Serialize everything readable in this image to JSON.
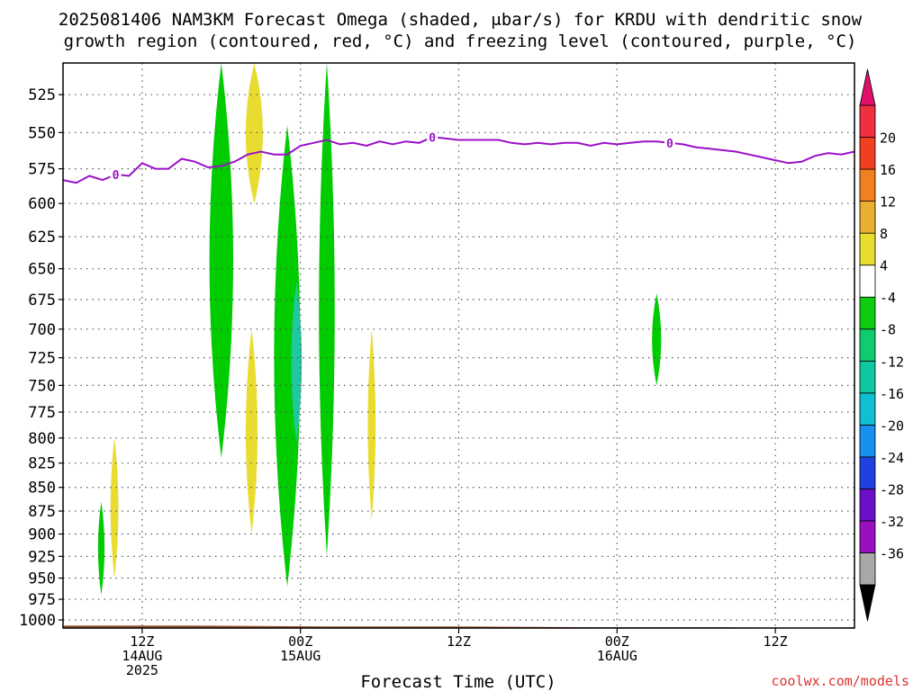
{
  "title_line1": "2025081406 NAM3KM Forecast Omega (shaded, μbar/s) for KRDU with dendritic snow",
  "title_line2": "growth region (contoured, red, °C) and freezing level (contoured, purple, °C)",
  "xlabel": "Forecast Time (UTC)",
  "credit": "coolwx.com/models",
  "colors": {
    "freezing_level": "#9b10c8",
    "ground": "#a0522d",
    "up_green": "#00cc00",
    "up_teal": "#20c8a0",
    "down_yellow": "#e8dc30"
  },
  "chart_data": {
    "type": "contour",
    "x_ticks": [
      {
        "h": 6,
        "l1": "12Z",
        "l2": "14AUG",
        "l3": "2025"
      },
      {
        "h": 18,
        "l1": "00Z",
        "l2": "15AUG",
        "l3": ""
      },
      {
        "h": 30,
        "l1": "12Z",
        "l2": "",
        "l3": ""
      },
      {
        "h": 42,
        "l1": "00Z",
        "l2": "16AUG",
        "l3": ""
      },
      {
        "h": 54,
        "l1": "12Z",
        "l2": "",
        "l3": ""
      }
    ],
    "xlim_hours": [
      0,
      60
    ],
    "y_ticks": [
      1000,
      975,
      950,
      925,
      900,
      875,
      850,
      825,
      800,
      775,
      750,
      725,
      700,
      675,
      650,
      625,
      600,
      575,
      550,
      525
    ],
    "ylim": [
      1010,
      505
    ],
    "y_scale": "log",
    "grid": true,
    "colorbar": {
      "labels": [
        "-36",
        "-32",
        "-28",
        "-24",
        "-20",
        "-16",
        "-12",
        "-8",
        "-4",
        "4",
        "8",
        "12",
        "16",
        "20"
      ],
      "colors": [
        "#a8a8a8",
        "#9a10c0",
        "#6a10c8",
        "#2040e0",
        "#1890f0",
        "#10c0d0",
        "#10c8a0",
        "#10cc70",
        "#10cc10",
        "#ffffff",
        "#e8dc30",
        "#e8b030",
        "#f08020",
        "#f04020",
        "#ee3040"
      ],
      "under_color": "#000000",
      "over_color": "#e0106a"
    },
    "freezing_level": {
      "label": "0",
      "points": [
        [
          0,
          583
        ],
        [
          1,
          585
        ],
        [
          2,
          580
        ],
        [
          3,
          583
        ],
        [
          4,
          579
        ],
        [
          5,
          580
        ],
        [
          6,
          571
        ],
        [
          7,
          575
        ],
        [
          8,
          575
        ],
        [
          9,
          568
        ],
        [
          10,
          570
        ],
        [
          11,
          574
        ],
        [
          12,
          573
        ],
        [
          13,
          570
        ],
        [
          14,
          565
        ],
        [
          15,
          563
        ],
        [
          16,
          565
        ],
        [
          17,
          565
        ],
        [
          18,
          559
        ],
        [
          19,
          557
        ],
        [
          20,
          555
        ],
        [
          21,
          558
        ],
        [
          22,
          557
        ],
        [
          23,
          559
        ],
        [
          24,
          556
        ],
        [
          25,
          558
        ],
        [
          26,
          556
        ],
        [
          27,
          557
        ],
        [
          28,
          553
        ],
        [
          29,
          554
        ],
        [
          30,
          555
        ],
        [
          31,
          555
        ],
        [
          32,
          555
        ],
        [
          33,
          555
        ],
        [
          34,
          557
        ],
        [
          35,
          558
        ],
        [
          36,
          557
        ],
        [
          37,
          558
        ],
        [
          38,
          557
        ],
        [
          39,
          557
        ],
        [
          40,
          559
        ],
        [
          41,
          557
        ],
        [
          42,
          558
        ],
        [
          43,
          557
        ],
        [
          44,
          556
        ],
        [
          45,
          556
        ],
        [
          46,
          557
        ],
        [
          47,
          558
        ],
        [
          48,
          560
        ],
        [
          49,
          561
        ],
        [
          50,
          562
        ],
        [
          51,
          563
        ],
        [
          52,
          565
        ],
        [
          53,
          567
        ],
        [
          54,
          569
        ],
        [
          55,
          571
        ],
        [
          56,
          570
        ],
        [
          57,
          566
        ],
        [
          58,
          564
        ],
        [
          59,
          565
        ],
        [
          60,
          563
        ]
      ]
    },
    "features": [
      {
        "name": "upward-omega-1",
        "value": -6,
        "h_center": 12.0,
        "h_half_width": 0.9,
        "p_top": 505,
        "p_bottom": 820
      },
      {
        "name": "upward-omega-2",
        "value": -6,
        "h_center": 17.0,
        "h_half_width": 1.0,
        "p_top": 545,
        "p_bottom": 960
      },
      {
        "name": "upward-omega-3",
        "value": -6,
        "h_center": 20.0,
        "h_half_width": 0.6,
        "p_top": 505,
        "p_bottom": 925
      },
      {
        "name": "upward-omega-4",
        "value": -6,
        "h_center": 2.9,
        "h_half_width": 0.25,
        "p_top": 865,
        "p_bottom": 970
      },
      {
        "name": "upward-omega-5",
        "value": -6,
        "h_center": 45.0,
        "h_half_width": 0.35,
        "p_top": 670,
        "p_bottom": 750
      },
      {
        "name": "upward-omega-6",
        "value": -10,
        "h_center": 17.7,
        "h_half_width": 0.4,
        "p_top": 660,
        "p_bottom": 805
      },
      {
        "name": "downward-omega-1",
        "value": 5,
        "h_center": 14.5,
        "h_half_width": 0.65,
        "p_top": 505,
        "p_bottom": 600
      },
      {
        "name": "downward-omega-2",
        "value": 5,
        "h_center": 14.3,
        "h_half_width": 0.45,
        "p_top": 700,
        "p_bottom": 900
      },
      {
        "name": "downward-omega-3",
        "value": 5,
        "h_center": 23.4,
        "h_half_width": 0.3,
        "p_top": 700,
        "p_bottom": 885
      },
      {
        "name": "downward-omega-4",
        "value": 5,
        "h_center": 3.9,
        "h_half_width": 0.3,
        "p_top": 800,
        "p_bottom": 950
      }
    ],
    "surface_pressure": [
      [
        0,
        1007
      ],
      [
        10,
        1007
      ],
      [
        20,
        1008
      ],
      [
        30,
        1008
      ],
      [
        40,
        1009
      ],
      [
        50,
        1009
      ],
      [
        57,
        1010
      ],
      [
        60,
        1009
      ]
    ]
  }
}
